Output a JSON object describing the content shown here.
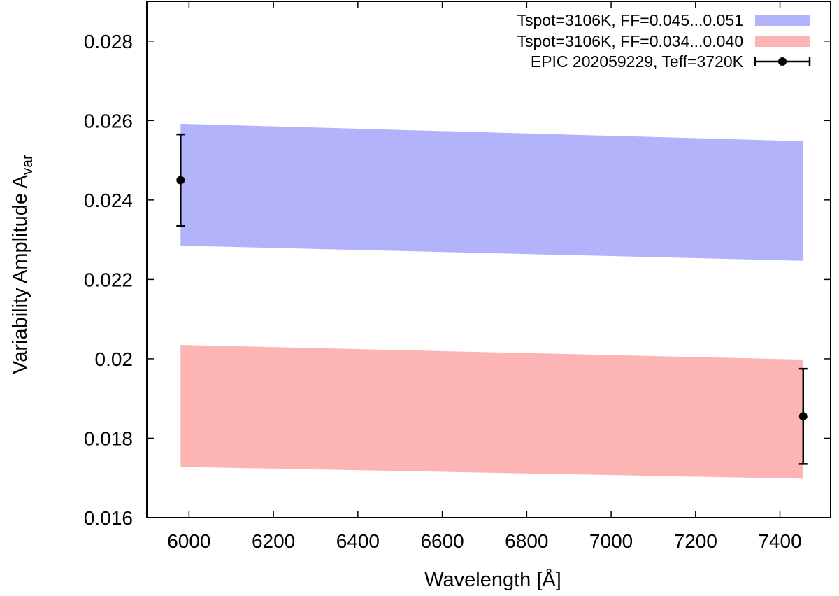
{
  "chart_data": {
    "type": "area",
    "xlabel": "Wavelength [Å]",
    "ylabel_main": "Variability Amplitude A",
    "ylabel_sub": "var",
    "xlim": [
      5900,
      7520
    ],
    "ylim": [
      0.016,
      0.029
    ],
    "xticks": [
      6000,
      6200,
      6400,
      6600,
      6800,
      7000,
      7200,
      7400
    ],
    "yticks": [
      0.016,
      0.018,
      0.02,
      0.022,
      0.024,
      0.026,
      0.028
    ],
    "ytick_labels": [
      "0.016",
      "0.018",
      "0.02",
      "0.022",
      "0.024",
      "0.026",
      "0.028"
    ],
    "grid": false,
    "legend_position": "top-right",
    "bands": [
      {
        "name": "Tspot=3106K, FF=0.045...0.051",
        "color": "#b3b3fb",
        "x": [
          5980,
          7455
        ],
        "lower": [
          0.02285,
          0.02247
        ],
        "upper": [
          0.02592,
          0.02548
        ]
      },
      {
        "name": "Tspot=3106K, FF=0.034...0.040",
        "color": "#fcb4b4",
        "x": [
          5980,
          7455
        ],
        "lower": [
          0.01728,
          0.01698
        ],
        "upper": [
          0.02035,
          0.01998
        ]
      }
    ],
    "points": {
      "name": "EPIC 202059229, Teff=3720K",
      "color": "#000000",
      "x": [
        5980,
        7455
      ],
      "y": [
        0.0245,
        0.01855
      ],
      "yerr": [
        0.00115,
        0.0012
      ]
    }
  }
}
